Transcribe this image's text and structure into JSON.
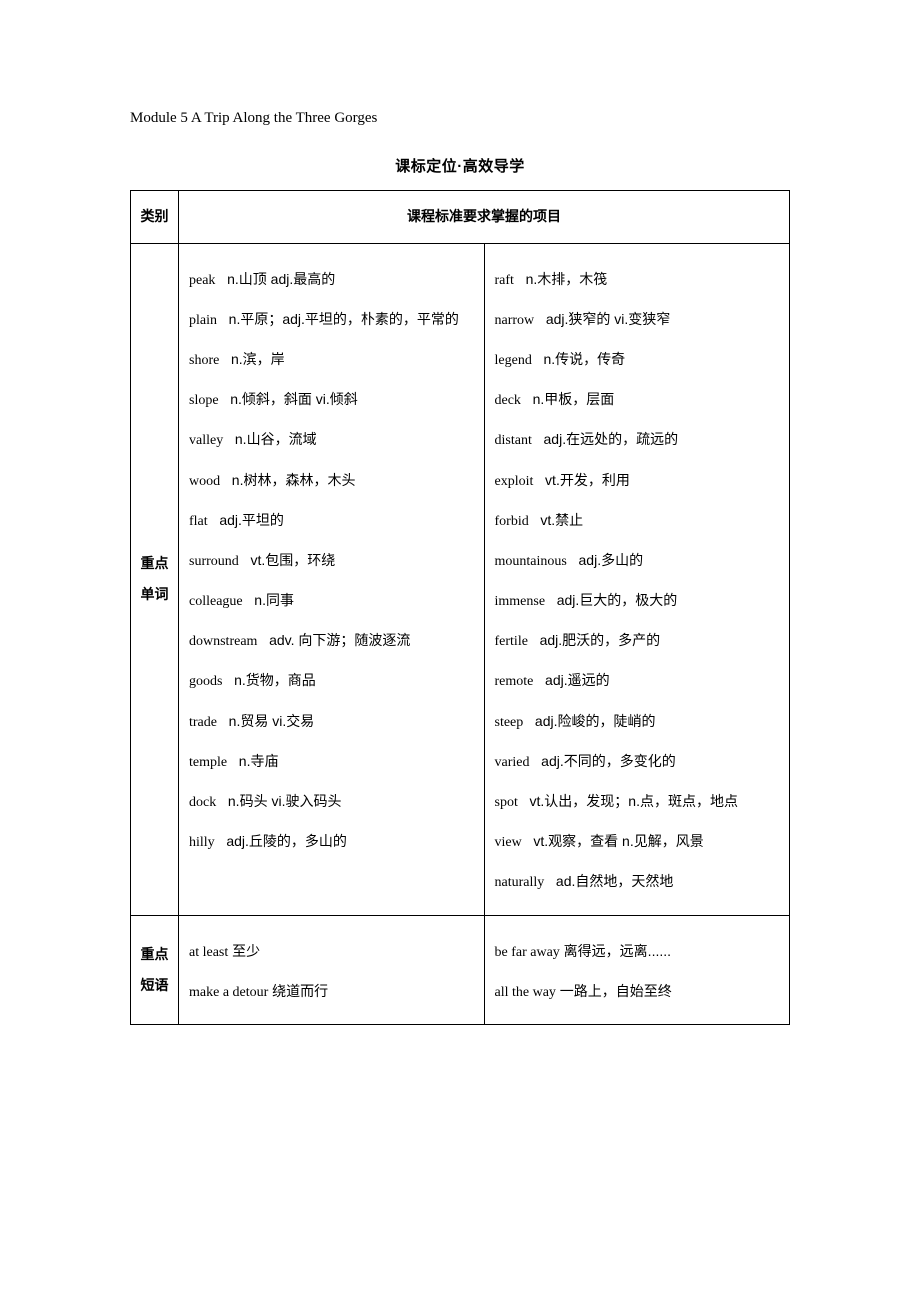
{
  "module_title_en": "Module 5 A Trip Along the Three Gorges",
  "section_heading": "课标定位·高效导学",
  "header": {
    "category_label": "类别",
    "requirements_label": "课程标准要求掌握的项目"
  },
  "vocab_row": {
    "category_label": "重点单词",
    "left_items": [
      {
        "en": "peak",
        "pos": "n.",
        "zh": "山顶 adj.最高的"
      },
      {
        "en": "plain",
        "pos": "n.",
        "zh": "平原；adj.平坦的，朴素的，平常的"
      },
      {
        "en": "shore",
        "pos": "n.",
        "zh": "滨，岸"
      },
      {
        "en": "slope",
        "pos": "n.",
        "zh": "倾斜，斜面 vi.倾斜"
      },
      {
        "en": "valley",
        "pos": "n.",
        "zh": "山谷，流域"
      },
      {
        "en": "wood",
        "pos": "n.",
        "zh": "树林，森林，木头"
      },
      {
        "en": "flat",
        "pos": "adj.",
        "zh": "平坦的"
      },
      {
        "en": "surround",
        "pos": "vt.",
        "zh": "包围，环绕"
      },
      {
        "en": "colleague",
        "pos": "n.",
        "zh": "同事"
      },
      {
        "en": "downstream",
        "pos": "adv.",
        "zh": " 向下游；随波逐流"
      },
      {
        "en": "goods",
        "pos": "n.",
        "zh": "货物，商品"
      },
      {
        "en": "trade",
        "pos": "n.",
        "zh": "贸易 vi.交易"
      },
      {
        "en": "temple",
        "pos": "n.",
        "zh": "寺庙"
      },
      {
        "en": "dock",
        "pos": "n.",
        "zh": "码头  vi.驶入码头"
      },
      {
        "en": "hilly",
        "pos": "adj.",
        "zh": "丘陵的，多山的"
      }
    ],
    "right_items": [
      {
        "en": "raft",
        "pos": "n.",
        "zh": "木排，木筏"
      },
      {
        "en": "narrow",
        "pos": "adj.",
        "zh": "狭窄的  vi.变狭窄"
      },
      {
        "en": "legend",
        "pos": "n.",
        "zh": "传说，传奇"
      },
      {
        "en": "deck",
        "pos": "n.",
        "zh": "甲板，层面"
      },
      {
        "en": "distant",
        "pos": "adj.",
        "zh": "在远处的，疏远的"
      },
      {
        "en": "exploit",
        "pos": "vt.",
        "zh": "开发，利用"
      },
      {
        "en": "forbid",
        "pos": "vt.",
        "zh": "禁止"
      },
      {
        "en": "mountainous",
        "pos": "adj.",
        "zh": "多山的"
      },
      {
        "en": "immense",
        "pos": "adj.",
        "zh": "巨大的，极大的"
      },
      {
        "en": "fertile",
        "pos": "adj.",
        "zh": "肥沃的，多产的"
      },
      {
        "en": "remote",
        "pos": "adj.",
        "zh": "遥远的"
      },
      {
        "en": "steep",
        "pos": "adj.",
        "zh": "险峻的，陡峭的"
      },
      {
        "en": "varied",
        "pos": "adj.",
        "zh": "不同的，多变化的"
      },
      {
        "en": "spot",
        "pos": "vt.",
        "zh": "认出，发现；n.点，斑点，地点"
      },
      {
        "en": "view",
        "pos": "vt.",
        "zh": "观察，查看 n.见解，风景"
      },
      {
        "en": "naturally",
        "pos": "ad.",
        "zh": "自然地，天然地"
      }
    ]
  },
  "phrase_row": {
    "category_label": "重点短语",
    "left_items": [
      {
        "en": "at least",
        "zh": "  至少"
      },
      {
        "en": "make a detour",
        "zh": " 绕道而行"
      }
    ],
    "right_items": [
      {
        "en": "be far away",
        "zh": " 离得远，远离......"
      },
      {
        "en": "all the way",
        "zh": " 一路上，自始至终"
      }
    ]
  }
}
